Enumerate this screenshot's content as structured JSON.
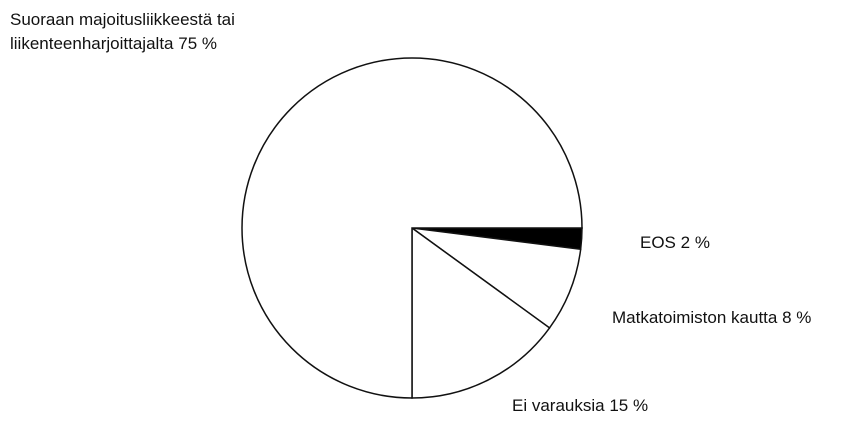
{
  "chart_data": {
    "type": "pie",
    "categories": [
      "EOS",
      "Matkatoimiston kautta",
      "Ei varauksia",
      "Suoraan majoitusliikkeestä tai liikenteenharjoittajalta"
    ],
    "values": [
      2,
      8,
      15,
      75
    ],
    "value_labels": [
      "2 %",
      "8 %",
      "15 %",
      "75 %"
    ],
    "colors": [
      "#000000",
      "#ffffff",
      "#ffffff",
      "#ffffff"
    ]
  }
}
